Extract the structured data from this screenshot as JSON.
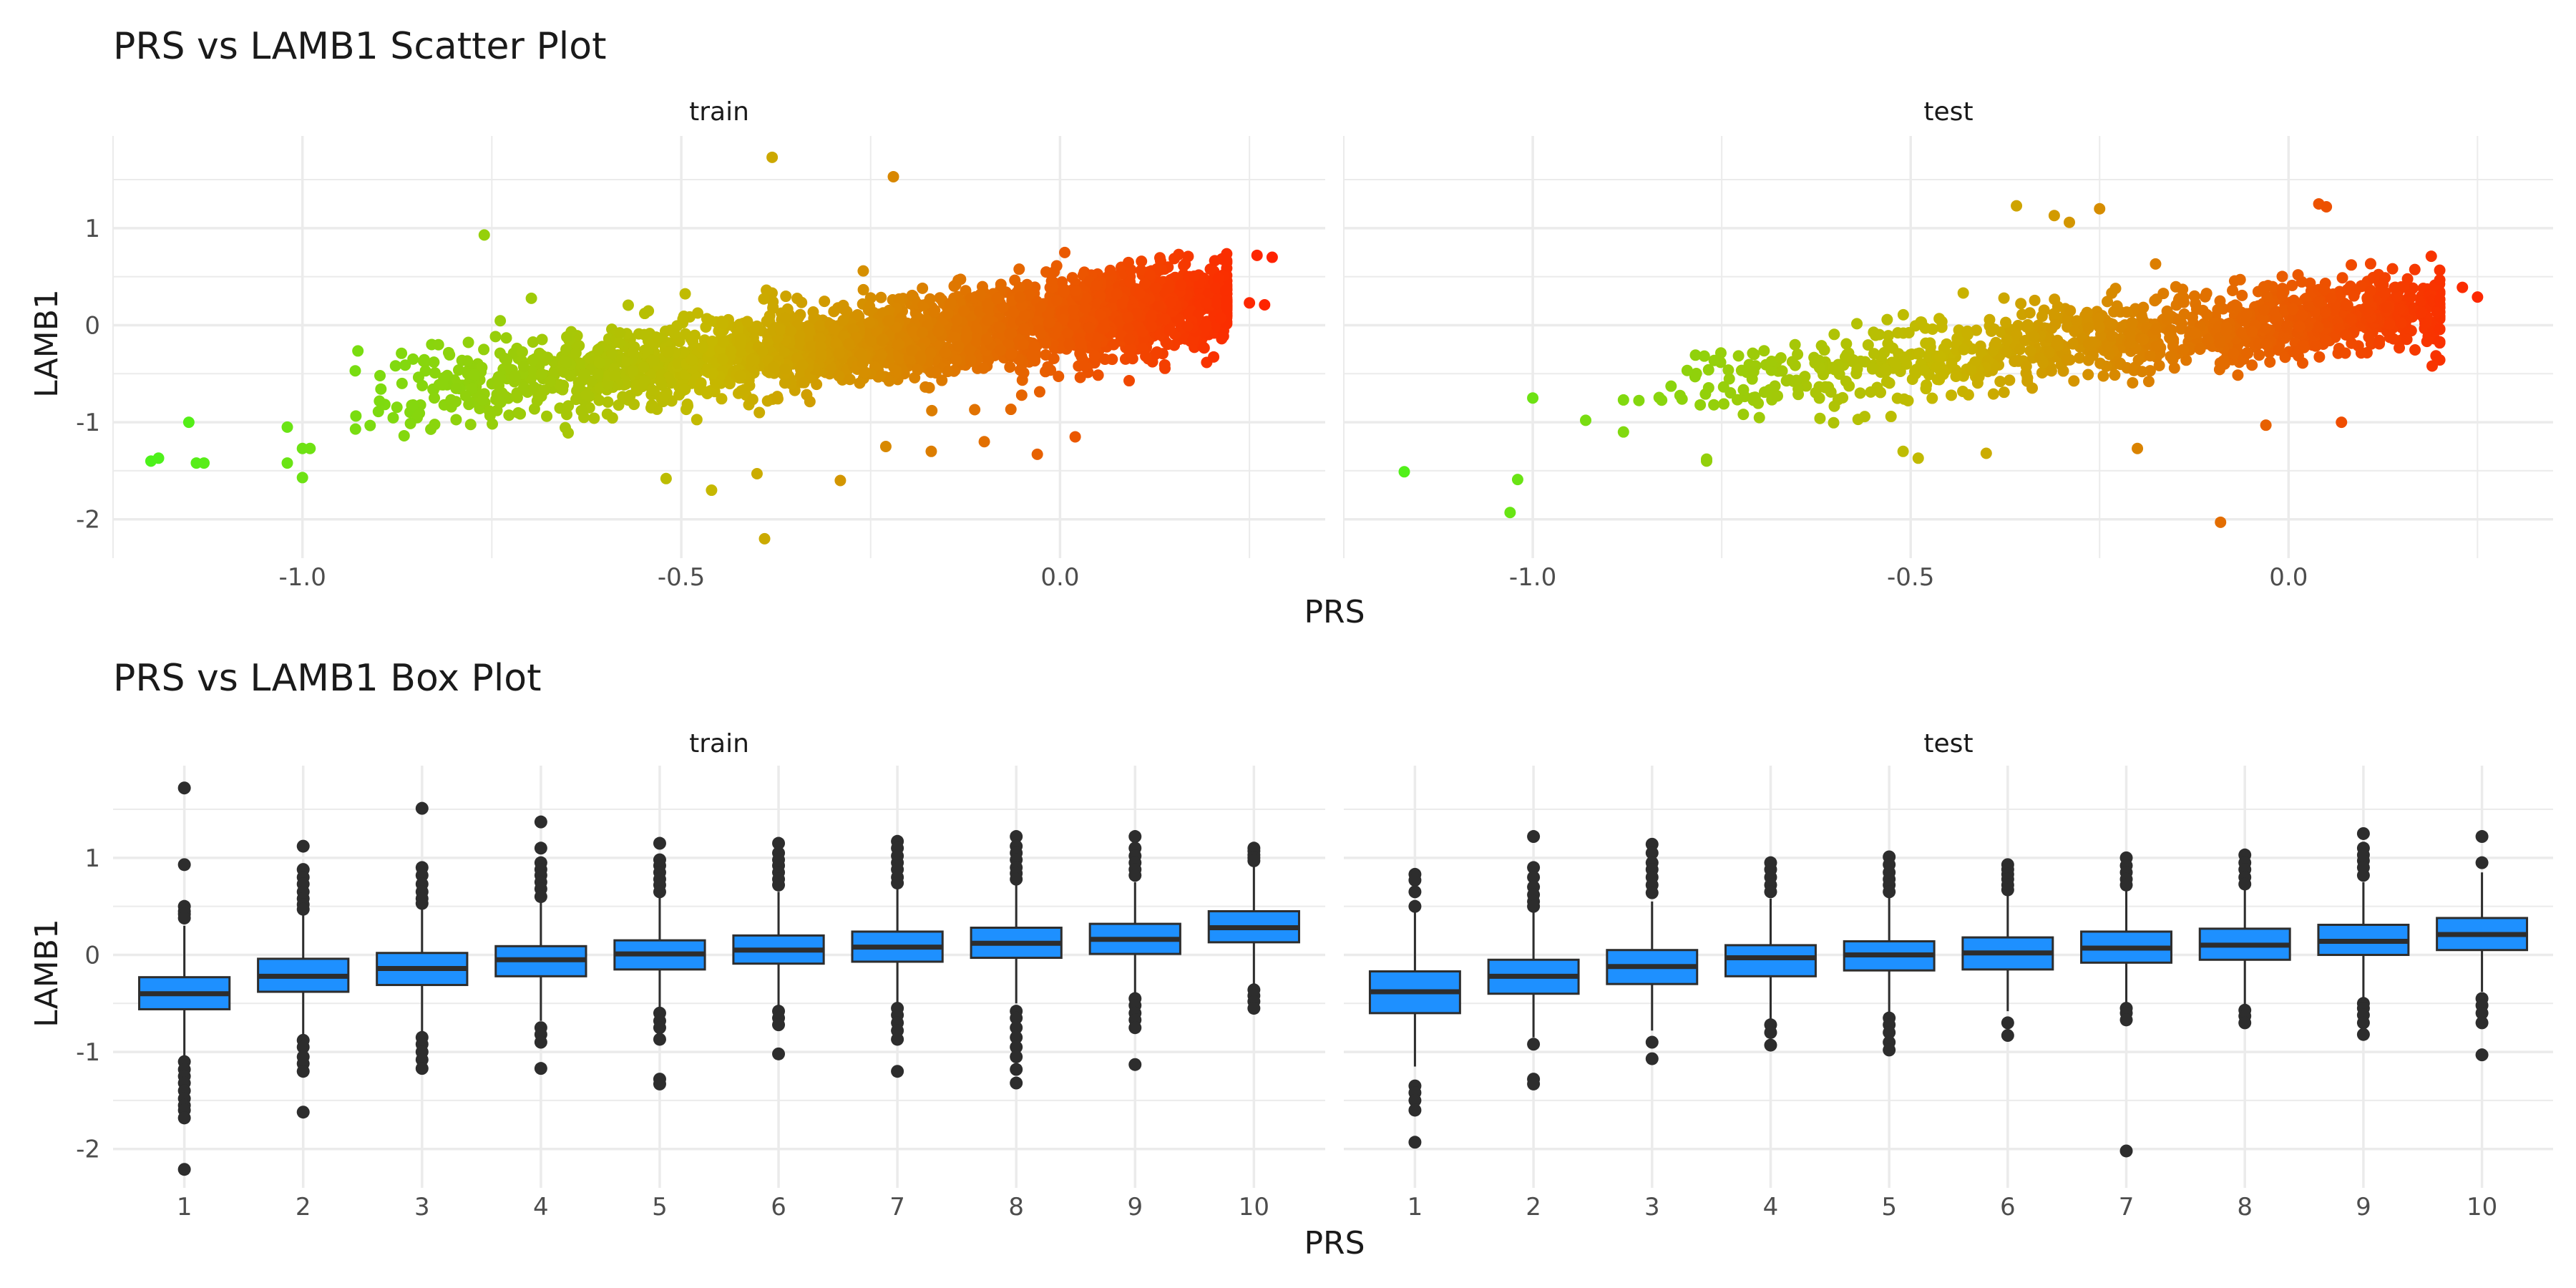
{
  "figure": {
    "scatter_title": "PRS vs LAMB1 Scatter Plot",
    "box_title": "PRS vs LAMB1 Box Plot",
    "facets": [
      "train",
      "test"
    ],
    "xlabel": "PRS",
    "ylabel": "LAMB1",
    "point_color_low": "#4cf21a",
    "point_color_mid": "#c6b800",
    "point_color_high": "#ff2200",
    "box_fill": "#1e90ff",
    "box_stroke": "#2d2d2d",
    "grid_color": "#ebebeb"
  },
  "chart_data": [
    {
      "type": "scatter",
      "title": "PRS vs LAMB1 Scatter Plot",
      "xlabel": "PRS",
      "ylabel": "LAMB1",
      "xlim": [
        -1.25,
        0.35
      ],
      "ylim": [
        -2.4,
        1.95
      ],
      "x_ticks": [
        -1.0,
        -0.5,
        0.0
      ],
      "x_tick_labels": [
        "-1.0",
        "-0.5",
        "0.0"
      ],
      "y_ticks": [
        -2,
        -1,
        0,
        1
      ],
      "y_tick_labels": [
        "-2",
        "-1",
        "0",
        "1"
      ],
      "grid": true,
      "panels": [
        {
          "name": "train",
          "cloud": {
            "n": 2600,
            "x_range": [
              -0.92,
              0.22
            ],
            "slope": 0.85,
            "intercept": 0.05,
            "spread": 0.22
          },
          "points": [
            [
              -1.2,
              -1.4
            ],
            [
              -1.19,
              -1.37
            ],
            [
              -1.14,
              -1.42
            ],
            [
              -1.13,
              -1.42
            ],
            [
              -1.15,
              -1.0
            ],
            [
              -1.02,
              -1.05
            ],
            [
              -1.02,
              -1.42
            ],
            [
              -1.0,
              -1.27
            ],
            [
              -0.99,
              -1.27
            ],
            [
              -1.0,
              -1.57
            ],
            [
              -0.93,
              -1.07
            ],
            [
              -0.76,
              0.93
            ],
            [
              -0.38,
              1.73
            ],
            [
              -0.22,
              1.53
            ],
            [
              -0.39,
              -2.2
            ],
            [
              -0.46,
              -1.7
            ],
            [
              -0.4,
              -1.53
            ],
            [
              -0.29,
              -1.6
            ],
            [
              -0.03,
              -1.33
            ],
            [
              0.02,
              -1.15
            ],
            [
              0.26,
              0.72
            ],
            [
              0.28,
              0.7
            ],
            [
              0.25,
              0.23
            ],
            [
              0.27,
              0.21
            ],
            [
              -0.52,
              -1.58
            ],
            [
              -0.17,
              -1.3
            ],
            [
              -0.1,
              -1.2
            ],
            [
              -0.23,
              -1.25
            ]
          ]
        },
        {
          "name": "test",
          "cloud": {
            "n": 1100,
            "x_range": [
              -0.85,
              0.2
            ],
            "slope": 0.8,
            "intercept": 0.05,
            "spread": 0.2
          },
          "points": [
            [
              -1.17,
              -1.51
            ],
            [
              -1.03,
              -1.93
            ],
            [
              -1.02,
              -1.59
            ],
            [
              -1.0,
              -0.75
            ],
            [
              -0.93,
              -0.98
            ],
            [
              -0.88,
              -0.77
            ],
            [
              -0.88,
              -1.1
            ],
            [
              -0.77,
              -1.4
            ],
            [
              -0.77,
              -1.38
            ],
            [
              -0.62,
              -0.96
            ],
            [
              -0.49,
              -1.37
            ],
            [
              -0.4,
              -1.32
            ],
            [
              -0.36,
              1.23
            ],
            [
              -0.31,
              1.13
            ],
            [
              -0.29,
              1.06
            ],
            [
              -0.25,
              1.2
            ],
            [
              -0.09,
              -2.03
            ],
            [
              -0.03,
              -1.03
            ],
            [
              0.04,
              1.25
            ],
            [
              0.05,
              1.22
            ],
            [
              0.19,
              -0.42
            ],
            [
              0.25,
              0.29
            ],
            [
              0.23,
              0.39
            ],
            [
              0.07,
              -1.0
            ],
            [
              -0.51,
              -1.3
            ],
            [
              -0.2,
              -1.27
            ]
          ]
        }
      ]
    },
    {
      "type": "box",
      "title": "PRS vs LAMB1 Box Plot",
      "xlabel": "PRS",
      "ylabel": "LAMB1",
      "categories": [
        "1",
        "2",
        "3",
        "4",
        "5",
        "6",
        "7",
        "8",
        "9",
        "10"
      ],
      "ylim": [
        -2.4,
        1.95
      ],
      "y_ticks": [
        -2,
        -1,
        0,
        1
      ],
      "y_tick_labels": [
        "-2",
        "-1",
        "0",
        "1"
      ],
      "grid": true,
      "panels": [
        {
          "name": "train",
          "boxes": [
            {
              "q1": -0.56,
              "med": -0.4,
              "q3": -0.23,
              "wlo": -1.05,
              "whi": 0.3,
              "out": [
                1.72,
                0.93,
                0.5,
                0.45,
                0.42,
                0.38,
                -1.1,
                -1.18,
                -1.25,
                -1.32,
                -1.4,
                -1.48,
                -1.55,
                -1.6,
                -1.68,
                -2.21
              ]
            },
            {
              "q1": -0.38,
              "med": -0.22,
              "q3": -0.04,
              "wlo": -0.85,
              "whi": 0.45,
              "out": [
                1.12,
                0.88,
                0.8,
                0.73,
                0.65,
                0.58,
                0.52,
                0.47,
                -0.88,
                -0.95,
                -1.05,
                -1.12,
                -1.2,
                -1.62
              ]
            },
            {
              "q1": -0.31,
              "med": -0.14,
              "q3": 0.02,
              "wlo": -0.8,
              "whi": 0.5,
              "out": [
                1.51,
                0.9,
                0.82,
                0.73,
                0.65,
                0.58,
                0.53,
                -0.85,
                -0.92,
                -1.0,
                -1.08,
                -1.17
              ]
            },
            {
              "q1": -0.22,
              "med": -0.05,
              "q3": 0.09,
              "wlo": -0.68,
              "whi": 0.55,
              "out": [
                1.37,
                1.1,
                0.95,
                0.88,
                0.82,
                0.75,
                0.68,
                0.6,
                -0.75,
                -0.82,
                -0.9,
                -1.17
              ]
            },
            {
              "q1": -0.15,
              "med": 0.01,
              "q3": 0.15,
              "wlo": -0.58,
              "whi": 0.6,
              "out": [
                1.15,
                0.98,
                0.92,
                0.85,
                0.78,
                0.72,
                0.65,
                -0.6,
                -0.68,
                -0.75,
                -0.87,
                -1.28,
                -1.33
              ]
            },
            {
              "q1": -0.09,
              "med": 0.05,
              "q3": 0.2,
              "wlo": -0.52,
              "whi": 0.65,
              "out": [
                1.15,
                1.05,
                0.98,
                0.92,
                0.85,
                0.78,
                0.72,
                -0.58,
                -0.65,
                -0.72,
                -1.02
              ]
            },
            {
              "q1": -0.07,
              "med": 0.08,
              "q3": 0.24,
              "wlo": -0.52,
              "whi": 0.68,
              "out": [
                1.17,
                1.1,
                1.02,
                0.95,
                0.88,
                0.8,
                0.74,
                -0.55,
                -0.62,
                -0.7,
                -0.78,
                -0.87,
                -1.2
              ]
            },
            {
              "q1": -0.03,
              "med": 0.12,
              "q3": 0.28,
              "wlo": -0.5,
              "whi": 0.72,
              "out": [
                1.22,
                1.12,
                1.05,
                0.98,
                0.9,
                0.84,
                0.78,
                -0.58,
                -0.65,
                -0.75,
                -0.85,
                -0.95,
                -1.05,
                -1.18,
                -1.32
              ]
            },
            {
              "q1": 0.01,
              "med": 0.16,
              "q3": 0.32,
              "wlo": -0.42,
              "whi": 0.75,
              "out": [
                1.22,
                1.1,
                1.02,
                0.95,
                0.88,
                0.82,
                -0.45,
                -0.52,
                -0.6,
                -0.67,
                -0.75,
                -1.13
              ]
            },
            {
              "q1": 0.13,
              "med": 0.28,
              "q3": 0.45,
              "wlo": -0.33,
              "whi": 0.93,
              "out": [
                1.1,
                1.07,
                1.03,
                1.0,
                0.97,
                -0.36,
                -0.42,
                -0.48,
                -0.55
              ]
            }
          ]
        },
        {
          "name": "test",
          "boxes": [
            {
              "q1": -0.6,
              "med": -0.38,
              "q3": -0.17,
              "wlo": -1.15,
              "whi": 0.45,
              "out": [
                0.83,
                0.77,
                0.65,
                0.5,
                -1.35,
                -1.42,
                -1.5,
                -1.6,
                -1.93
              ]
            },
            {
              "q1": -0.4,
              "med": -0.22,
              "q3": -0.05,
              "wlo": -0.85,
              "whi": 0.45,
              "out": [
                1.22,
                0.9,
                0.8,
                0.7,
                0.62,
                0.55,
                0.5,
                -0.92,
                -1.28,
                -1.33
              ]
            },
            {
              "q1": -0.3,
              "med": -0.12,
              "q3": 0.05,
              "wlo": -0.78,
              "whi": 0.55,
              "out": [
                1.14,
                1.05,
                0.95,
                0.88,
                0.8,
                0.72,
                0.64,
                -0.9,
                -1.07
              ]
            },
            {
              "q1": -0.22,
              "med": -0.03,
              "q3": 0.1,
              "wlo": -0.68,
              "whi": 0.58,
              "out": [
                0.95,
                0.88,
                0.8,
                0.72,
                0.65,
                -0.72,
                -0.8,
                -0.93
              ]
            },
            {
              "q1": -0.16,
              "med": 0.0,
              "q3": 0.14,
              "wlo": -0.6,
              "whi": 0.6,
              "out": [
                1.01,
                0.93,
                0.85,
                0.78,
                0.72,
                0.65,
                -0.65,
                -0.72,
                -0.8,
                -0.9,
                -0.98
              ]
            },
            {
              "q1": -0.15,
              "med": 0.02,
              "q3": 0.18,
              "wlo": -0.58,
              "whi": 0.62,
              "out": [
                0.93,
                0.88,
                0.83,
                0.78,
                0.72,
                0.67,
                -0.7,
                -0.83
              ]
            },
            {
              "q1": -0.08,
              "med": 0.07,
              "q3": 0.24,
              "wlo": -0.52,
              "whi": 0.68,
              "out": [
                1.0,
                0.92,
                0.85,
                0.78,
                0.72,
                -0.55,
                -0.6,
                -0.67,
                -2.02
              ]
            },
            {
              "q1": -0.05,
              "med": 0.1,
              "q3": 0.27,
              "wlo": -0.52,
              "whi": 0.7,
              "out": [
                1.03,
                0.95,
                0.88,
                0.8,
                0.73,
                -0.57,
                -0.63,
                -0.7
              ]
            },
            {
              "q1": 0.0,
              "med": 0.14,
              "q3": 0.31,
              "wlo": -0.45,
              "whi": 0.75,
              "out": [
                1.25,
                1.1,
                1.03,
                0.97,
                0.9,
                0.82,
                -0.5,
                -0.55,
                -0.62,
                -0.7,
                -0.82
              ]
            },
            {
              "q1": 0.05,
              "med": 0.21,
              "q3": 0.38,
              "wlo": -0.38,
              "whi": 0.85,
              "out": [
                1.22,
                0.95,
                -0.45,
                -0.52,
                -0.6,
                -0.7,
                -1.03
              ]
            }
          ]
        }
      ]
    }
  ]
}
